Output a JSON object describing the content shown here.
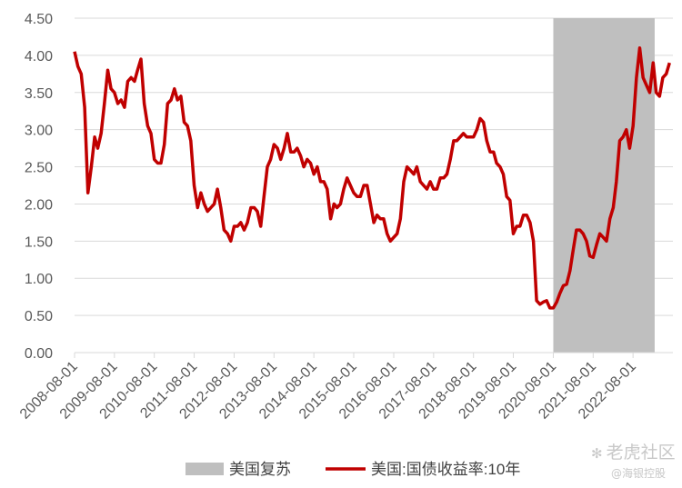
{
  "chart_data": {
    "type": "line",
    "title": "",
    "xlabel": "",
    "ylabel": "",
    "xlim": [
      "2008-08-01",
      "2023-08-01"
    ],
    "ylim": [
      0,
      4.5
    ],
    "y_ticks": [
      "0.00",
      "0.50",
      "1.00",
      "1.50",
      "2.00",
      "2.50",
      "3.00",
      "3.50",
      "4.00",
      "4.50"
    ],
    "x_ticks": [
      "2008-08-01",
      "2009-08-01",
      "2010-08-01",
      "2011-08-01",
      "2012-08-01",
      "2013-08-01",
      "2014-08-01",
      "2015-08-01",
      "2016-08-01",
      "2017-08-01",
      "2018-08-01",
      "2019-08-01",
      "2020-08-01",
      "2021-08-01",
      "2022-08-01"
    ],
    "grid": true,
    "legend_position": "bottom",
    "shaded_region": {
      "name": "美国复苏",
      "start": "2020-08-01",
      "end": "2023-02-15",
      "color": "#bfbfbf"
    },
    "series": [
      {
        "name": "美国:国债收益率:10年",
        "color": "#c00000",
        "points": [
          [
            "2008-08-01",
            4.05
          ],
          [
            "2008-09-01",
            3.85
          ],
          [
            "2008-10-01",
            3.75
          ],
          [
            "2008-11-01",
            3.3
          ],
          [
            "2008-12-01",
            2.15
          ],
          [
            "2009-01-01",
            2.5
          ],
          [
            "2009-02-01",
            2.9
          ],
          [
            "2009-03-01",
            2.75
          ],
          [
            "2009-04-01",
            2.95
          ],
          [
            "2009-05-01",
            3.35
          ],
          [
            "2009-06-01",
            3.8
          ],
          [
            "2009-07-01",
            3.55
          ],
          [
            "2009-08-01",
            3.5
          ],
          [
            "2009-09-01",
            3.35
          ],
          [
            "2009-10-01",
            3.4
          ],
          [
            "2009-11-01",
            3.3
          ],
          [
            "2009-12-01",
            3.65
          ],
          [
            "2010-01-01",
            3.7
          ],
          [
            "2010-02-01",
            3.65
          ],
          [
            "2010-03-01",
            3.8
          ],
          [
            "2010-04-01",
            3.95
          ],
          [
            "2010-05-01",
            3.35
          ],
          [
            "2010-06-01",
            3.05
          ],
          [
            "2010-07-01",
            2.95
          ],
          [
            "2010-08-01",
            2.6
          ],
          [
            "2010-09-01",
            2.55
          ],
          [
            "2010-10-01",
            2.55
          ],
          [
            "2010-11-01",
            2.8
          ],
          [
            "2010-12-01",
            3.35
          ],
          [
            "2011-01-01",
            3.4
          ],
          [
            "2011-02-01",
            3.55
          ],
          [
            "2011-03-01",
            3.4
          ],
          [
            "2011-04-01",
            3.45
          ],
          [
            "2011-05-01",
            3.1
          ],
          [
            "2011-06-01",
            3.05
          ],
          [
            "2011-07-01",
            2.85
          ],
          [
            "2011-08-01",
            2.25
          ],
          [
            "2011-09-01",
            1.95
          ],
          [
            "2011-10-01",
            2.15
          ],
          [
            "2011-11-01",
            2.0
          ],
          [
            "2011-12-01",
            1.9
          ],
          [
            "2012-01-01",
            1.95
          ],
          [
            "2012-02-01",
            2.0
          ],
          [
            "2012-03-01",
            2.2
          ],
          [
            "2012-04-01",
            1.95
          ],
          [
            "2012-05-01",
            1.65
          ],
          [
            "2012-06-01",
            1.6
          ],
          [
            "2012-07-01",
            1.5
          ],
          [
            "2012-08-01",
            1.7
          ],
          [
            "2012-09-01",
            1.7
          ],
          [
            "2012-10-01",
            1.75
          ],
          [
            "2012-11-01",
            1.65
          ],
          [
            "2012-12-01",
            1.75
          ],
          [
            "2013-01-01",
            1.95
          ],
          [
            "2013-02-01",
            1.95
          ],
          [
            "2013-03-01",
            1.9
          ],
          [
            "2013-04-01",
            1.7
          ],
          [
            "2013-05-01",
            2.1
          ],
          [
            "2013-06-01",
            2.5
          ],
          [
            "2013-07-01",
            2.6
          ],
          [
            "2013-08-01",
            2.8
          ],
          [
            "2013-09-01",
            2.75
          ],
          [
            "2013-10-01",
            2.6
          ],
          [
            "2013-11-01",
            2.75
          ],
          [
            "2013-12-01",
            2.95
          ],
          [
            "2014-01-01",
            2.7
          ],
          [
            "2014-02-01",
            2.7
          ],
          [
            "2014-03-01",
            2.75
          ],
          [
            "2014-04-01",
            2.65
          ],
          [
            "2014-05-01",
            2.5
          ],
          [
            "2014-06-01",
            2.6
          ],
          [
            "2014-07-01",
            2.55
          ],
          [
            "2014-08-01",
            2.4
          ],
          [
            "2014-09-01",
            2.5
          ],
          [
            "2014-10-01",
            2.3
          ],
          [
            "2014-11-01",
            2.3
          ],
          [
            "2014-12-01",
            2.2
          ],
          [
            "2015-01-01",
            1.8
          ],
          [
            "2015-02-01",
            2.0
          ],
          [
            "2015-03-01",
            1.95
          ],
          [
            "2015-04-01",
            2.0
          ],
          [
            "2015-05-01",
            2.2
          ],
          [
            "2015-06-01",
            2.35
          ],
          [
            "2015-07-01",
            2.25
          ],
          [
            "2015-08-01",
            2.15
          ],
          [
            "2015-09-01",
            2.1
          ],
          [
            "2015-10-01",
            2.1
          ],
          [
            "2015-11-01",
            2.25
          ],
          [
            "2015-12-01",
            2.25
          ],
          [
            "2016-01-01",
            2.0
          ],
          [
            "2016-02-01",
            1.75
          ],
          [
            "2016-03-01",
            1.85
          ],
          [
            "2016-04-01",
            1.8
          ],
          [
            "2016-05-01",
            1.8
          ],
          [
            "2016-06-01",
            1.6
          ],
          [
            "2016-07-01",
            1.5
          ],
          [
            "2016-08-01",
            1.55
          ],
          [
            "2016-09-01",
            1.6
          ],
          [
            "2016-10-01",
            1.8
          ],
          [
            "2016-11-01",
            2.3
          ],
          [
            "2016-12-01",
            2.5
          ],
          [
            "2017-01-01",
            2.45
          ],
          [
            "2017-02-01",
            2.4
          ],
          [
            "2017-03-01",
            2.5
          ],
          [
            "2017-04-01",
            2.3
          ],
          [
            "2017-05-01",
            2.25
          ],
          [
            "2017-06-01",
            2.2
          ],
          [
            "2017-07-01",
            2.3
          ],
          [
            "2017-08-01",
            2.2
          ],
          [
            "2017-09-01",
            2.2
          ],
          [
            "2017-10-01",
            2.35
          ],
          [
            "2017-11-01",
            2.35
          ],
          [
            "2017-12-01",
            2.4
          ],
          [
            "2018-01-01",
            2.6
          ],
          [
            "2018-02-01",
            2.85
          ],
          [
            "2018-03-01",
            2.85
          ],
          [
            "2018-04-01",
            2.9
          ],
          [
            "2018-05-01",
            2.95
          ],
          [
            "2018-06-01",
            2.9
          ],
          [
            "2018-07-01",
            2.9
          ],
          [
            "2018-08-01",
            2.9
          ],
          [
            "2018-09-01",
            3.0
          ],
          [
            "2018-10-01",
            3.15
          ],
          [
            "2018-11-01",
            3.1
          ],
          [
            "2018-12-01",
            2.85
          ],
          [
            "2019-01-01",
            2.7
          ],
          [
            "2019-02-01",
            2.7
          ],
          [
            "2019-03-01",
            2.55
          ],
          [
            "2019-04-01",
            2.5
          ],
          [
            "2019-05-01",
            2.4
          ],
          [
            "2019-06-01",
            2.1
          ],
          [
            "2019-07-01",
            2.05
          ],
          [
            "2019-08-01",
            1.6
          ],
          [
            "2019-09-01",
            1.7
          ],
          [
            "2019-10-01",
            1.7
          ],
          [
            "2019-11-01",
            1.85
          ],
          [
            "2019-12-01",
            1.85
          ],
          [
            "2020-01-01",
            1.75
          ],
          [
            "2020-02-01",
            1.5
          ],
          [
            "2020-03-01",
            0.7
          ],
          [
            "2020-04-01",
            0.65
          ],
          [
            "2020-05-01",
            0.68
          ],
          [
            "2020-06-01",
            0.7
          ],
          [
            "2020-07-01",
            0.6
          ],
          [
            "2020-08-01",
            0.6
          ],
          [
            "2020-09-01",
            0.68
          ],
          [
            "2020-10-01",
            0.8
          ],
          [
            "2020-11-01",
            0.9
          ],
          [
            "2020-12-01",
            0.92
          ],
          [
            "2021-01-01",
            1.1
          ],
          [
            "2021-02-01",
            1.4
          ],
          [
            "2021-03-01",
            1.65
          ],
          [
            "2021-04-01",
            1.65
          ],
          [
            "2021-05-01",
            1.6
          ],
          [
            "2021-06-01",
            1.5
          ],
          [
            "2021-07-01",
            1.3
          ],
          [
            "2021-08-01",
            1.28
          ],
          [
            "2021-09-01",
            1.45
          ],
          [
            "2021-10-01",
            1.6
          ],
          [
            "2021-11-01",
            1.55
          ],
          [
            "2021-12-01",
            1.5
          ],
          [
            "2022-01-01",
            1.8
          ],
          [
            "2022-02-01",
            1.95
          ],
          [
            "2022-03-01",
            2.3
          ],
          [
            "2022-04-01",
            2.85
          ],
          [
            "2022-05-01",
            2.9
          ],
          [
            "2022-06-01",
            3.0
          ],
          [
            "2022-07-01",
            2.75
          ],
          [
            "2022-08-01",
            3.05
          ],
          [
            "2022-09-01",
            3.7
          ],
          [
            "2022-10-01",
            4.1
          ],
          [
            "2022-11-01",
            3.7
          ],
          [
            "2022-12-01",
            3.6
          ],
          [
            "2023-01-01",
            3.5
          ],
          [
            "2023-02-01",
            3.9
          ],
          [
            "2023-03-01",
            3.5
          ],
          [
            "2023-04-01",
            3.45
          ],
          [
            "2023-05-01",
            3.7
          ],
          [
            "2023-06-01",
            3.75
          ],
          [
            "2023-07-01",
            3.9
          ]
        ]
      }
    ]
  },
  "watermark": {
    "brand": "老虎社区",
    "user": "@海银控股"
  }
}
